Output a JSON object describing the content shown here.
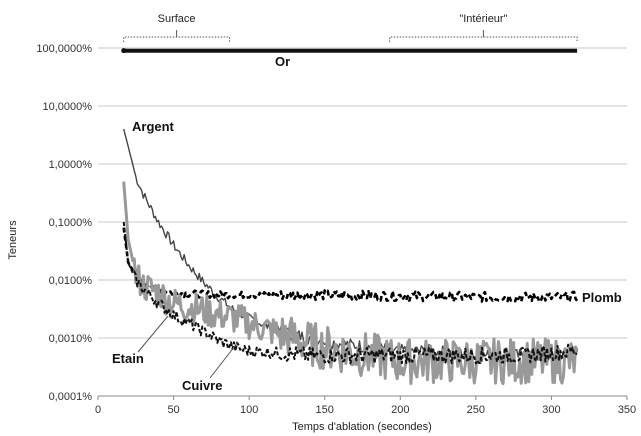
{
  "chart_data": {
    "type": "line",
    "title": "",
    "xlabel": "Temps d'ablation (secondes)",
    "ylabel": "Teneurs",
    "xlim": [
      0,
      350
    ],
    "ylim": [
      0.0001,
      100
    ],
    "yscale": "log",
    "grid": "horizontal",
    "x_ticks": [
      0,
      50,
      100,
      150,
      200,
      250,
      300,
      350
    ],
    "x_tick_labels": [
      "0",
      "50",
      "100",
      "150",
      "200",
      "250",
      "300",
      "350"
    ],
    "y_ticks": [
      0.0001,
      0.001,
      0.01,
      0.1,
      1,
      10,
      100
    ],
    "y_tick_labels": [
      "0,0001%",
      "0,0010%",
      "0,0100%",
      "0,1000%",
      "1,0000%",
      "10,0000%",
      "100,0000%"
    ],
    "regions": [
      {
        "label": "Surface",
        "x": [
          17,
          87
        ]
      },
      {
        "label": "\"Intérieur\"",
        "x": [
          193,
          317
        ]
      }
    ],
    "series": [
      {
        "name": "Or",
        "color": "#111111",
        "style": "solid",
        "x": [
          17,
          50,
          100,
          150,
          200,
          250,
          300,
          317
        ],
        "y": [
          90,
          90,
          90,
          90,
          90,
          90,
          90,
          90
        ]
      },
      {
        "name": "Argent",
        "color": "#444444",
        "style": "solid",
        "x": [
          17,
          20,
          25,
          30,
          40,
          50,
          60,
          70,
          80,
          90,
          100,
          120,
          140,
          160,
          180,
          200,
          220,
          250,
          280,
          300,
          317
        ],
        "y": [
          4.0,
          2.0,
          0.6,
          0.3,
          0.1,
          0.04,
          0.018,
          0.009,
          0.005,
          0.003,
          0.0022,
          0.0013,
          0.001,
          0.0008,
          0.0007,
          0.0006,
          0.0006,
          0.0005,
          0.0005,
          0.0005,
          0.0005
        ]
      },
      {
        "name": "Plomb",
        "color": "#000000",
        "style": "dashed",
        "x": [
          17,
          20,
          25,
          30,
          40,
          50,
          60,
          80,
          100,
          150,
          200,
          250,
          300,
          317
        ],
        "y": [
          0.08,
          0.02,
          0.012,
          0.009,
          0.007,
          0.006,
          0.0058,
          0.0056,
          0.0055,
          0.0055,
          0.0053,
          0.0051,
          0.005,
          0.0052
        ]
      },
      {
        "name": "Etain",
        "color": "#999999",
        "style": "solid",
        "x": [
          17,
          20,
          25,
          30,
          40,
          50,
          60,
          70,
          80,
          90,
          100,
          120,
          140,
          160,
          180,
          200,
          220,
          250,
          280,
          300,
          317
        ],
        "y": [
          0.5,
          0.05,
          0.012,
          0.008,
          0.006,
          0.004,
          0.0035,
          0.003,
          0.0025,
          0.0022,
          0.0018,
          0.0012,
          0.0008,
          0.0006,
          0.0005,
          0.0004,
          0.0004,
          0.0004,
          0.0004,
          0.0004,
          0.0004
        ]
      },
      {
        "name": "Cuivre",
        "color": "#111111",
        "style": "dashed",
        "x": [
          17,
          20,
          25,
          30,
          40,
          50,
          60,
          70,
          80,
          90,
          100,
          120,
          140,
          160,
          180,
          200,
          220,
          250,
          280,
          300,
          317
        ],
        "y": [
          0.1,
          0.02,
          0.01,
          0.007,
          0.004,
          0.0025,
          0.0018,
          0.0013,
          0.0009,
          0.0007,
          0.0006,
          0.00055,
          0.0005,
          0.0005,
          0.0005,
          0.0005,
          0.0005,
          0.0005,
          0.0005,
          0.00055,
          0.0006
        ]
      }
    ],
    "annotations": [
      {
        "text": "Or",
        "target_x": 120,
        "target_y": 90
      },
      {
        "text": "Argent",
        "target_x": 18,
        "target_y": 4.0
      },
      {
        "text": "Plomb",
        "target_x": 317,
        "target_y": 0.005
      },
      {
        "text": "Etain",
        "target_x": 45,
        "target_y": 0.004
      },
      {
        "text": "Cuivre",
        "target_x": 95,
        "target_y": 0.0007
      }
    ]
  }
}
